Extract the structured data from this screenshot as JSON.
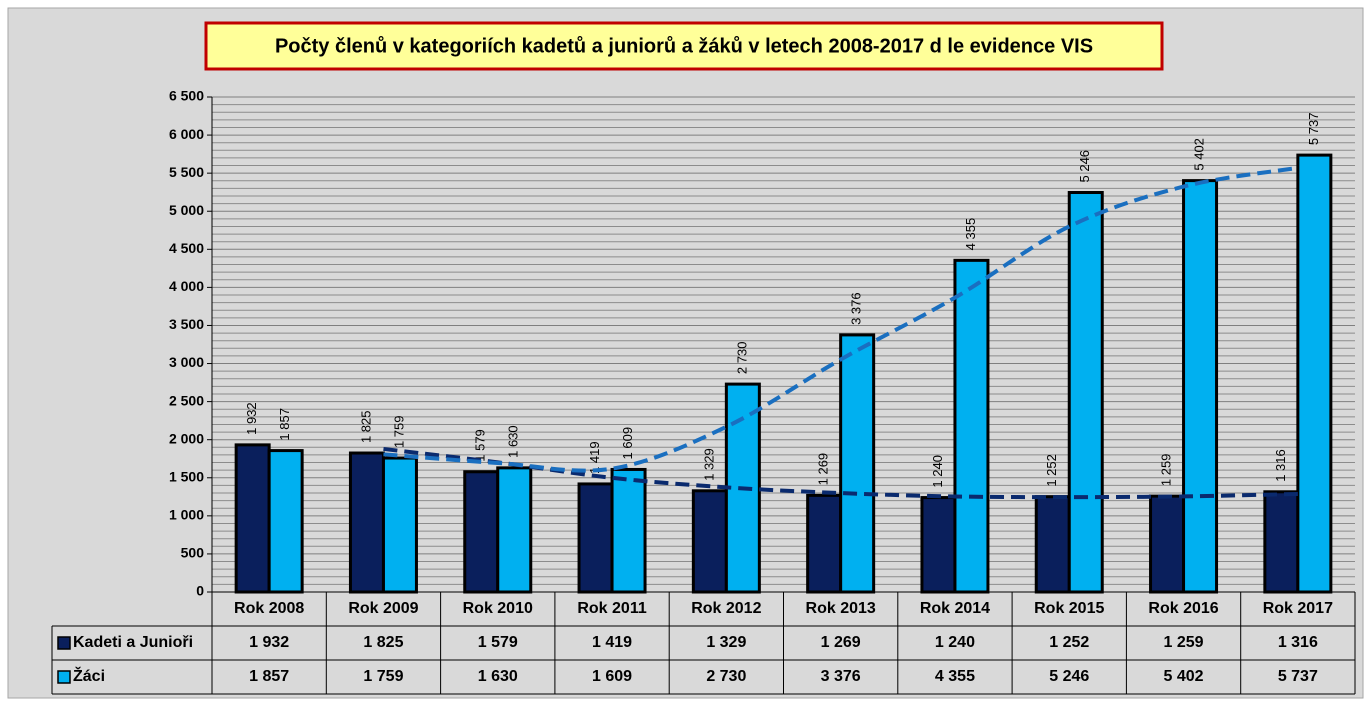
{
  "chart_data": {
    "type": "bar",
    "title": "Počty členů v kategoriích kadetů a juniorů a žáků v letech 2008-2017 d le evidence VIS",
    "categories": [
      "Rok 2008",
      "Rok 2009",
      "Rok 2010",
      "Rok 2011",
      "Rok 2012",
      "Rok 2013",
      "Rok 2014",
      "Rok 2015",
      "Rok 2016",
      "Rok 2017"
    ],
    "series": [
      {
        "name": "Kadeti a Junioři",
        "color": "#0a1f5c",
        "trend_color": "#0a2a6e",
        "values": [
          1932,
          1825,
          1579,
          1419,
          1329,
          1269,
          1240,
          1252,
          1259,
          1316
        ],
        "value_labels": [
          "1 932",
          "1 825",
          "1 579",
          "1 419",
          "1 329",
          "1 269",
          "1 240",
          "1 252",
          "1 259",
          "1 316"
        ]
      },
      {
        "name": "Žáci",
        "color": "#00b0f0",
        "trend_color": "#1a6fc0",
        "values": [
          1857,
          1759,
          1630,
          1609,
          2730,
          3376,
          4355,
          5246,
          5402,
          5737
        ],
        "value_labels": [
          "1 857",
          "1 759",
          "1 630",
          "1 609",
          "2 730",
          "3 376",
          "4 355",
          "5 246",
          "5 402",
          "5 737"
        ]
      }
    ],
    "trendline": {
      "type": "moving_average",
      "period": 2
    },
    "ylim": [
      0,
      6500
    ],
    "yticks": [
      0,
      500,
      {
        "value": 1000,
        "label": "1 000"
      },
      {
        "value": 1500,
        "label": "1 500"
      },
      {
        "value": 2000,
        "label": "2 000"
      },
      {
        "value": 2500,
        "label": "2 500"
      },
      {
        "value": 3000,
        "label": "3 000"
      },
      {
        "value": 3500,
        "label": "3 500"
      },
      {
        "value": 4000,
        "label": "4 000"
      },
      {
        "value": 4500,
        "label": "4 500"
      },
      {
        "value": 5000,
        "label": "5 000"
      },
      {
        "value": 5500,
        "label": "5 500"
      },
      {
        "value": 6000,
        "label": "6 000"
      },
      {
        "value": 6500,
        "label": "6 500"
      }
    ],
    "grid": true,
    "data_table": true
  }
}
